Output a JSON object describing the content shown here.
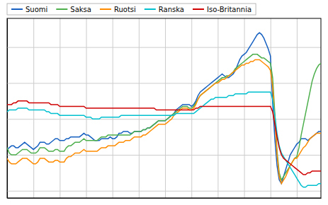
{
  "chart_data": {
    "type": "line",
    "x": [
      0,
      1,
      2,
      3,
      4,
      5,
      6,
      7,
      8,
      9,
      10,
      11,
      12,
      13,
      14,
      15,
      16,
      17,
      18,
      19,
      20,
      21,
      22,
      23,
      24,
      25,
      26,
      27,
      28,
      29,
      30,
      31,
      32,
      33,
      34,
      35,
      36,
      37,
      38,
      39,
      40,
      41,
      42,
      43,
      44,
      45,
      46,
      47,
      48,
      49,
      50,
      51,
      52,
      53,
      54,
      55,
      56,
      57,
      58,
      59,
      60,
      61,
      62,
      63,
      64,
      65,
      66,
      67,
      68,
      69,
      70,
      71,
      72,
      73,
      74,
      75,
      76,
      77,
      78,
      79,
      80,
      81,
      82,
      83,
      84,
      85,
      86,
      87,
      88,
      89,
      90,
      91,
      92,
      93,
      94,
      95,
      96,
      97,
      98,
      99,
      100,
      101,
      102,
      103,
      104,
      105,
      106,
      107,
      108,
      109,
      110,
      111,
      112,
      113,
      114,
      115,
      116,
      117,
      118,
      119,
      120,
      121,
      122,
      123,
      124,
      125,
      126,
      127,
      128,
      129,
      130,
      131,
      132,
      133,
      134,
      135,
      136,
      137,
      138,
      139,
      140,
      141,
      142,
      143
    ],
    "series": [
      {
        "name": "Suomi",
        "color": "#1560c0",
        "values": [
          -8.5,
          -8.0,
          -7.5,
          -7.5,
          -8.0,
          -8.0,
          -7.5,
          -7.0,
          -6.5,
          -7.0,
          -7.5,
          -8.0,
          -8.5,
          -8.0,
          -7.5,
          -6.5,
          -6.5,
          -6.5,
          -7.0,
          -7.0,
          -6.5,
          -6.0,
          -5.5,
          -5.5,
          -6.0,
          -6.0,
          -6.0,
          -5.5,
          -5.5,
          -5.0,
          -5.0,
          -5.0,
          -5.0,
          -5.0,
          -4.5,
          -4.0,
          -4.5,
          -4.5,
          -5.0,
          -5.5,
          -6.0,
          -6.0,
          -6.0,
          -5.5,
          -5.5,
          -5.5,
          -5.5,
          -5.0,
          -5.5,
          -5.5,
          -5.0,
          -4.0,
          -4.0,
          -3.5,
          -3.5,
          -3.5,
          -4.0,
          -4.0,
          -3.5,
          -3.5,
          -3.5,
          -3.5,
          -3.0,
          -3.0,
          -2.5,
          -2.5,
          -2.0,
          -1.5,
          -1.0,
          -0.5,
          -0.5,
          -0.5,
          -0.5,
          0.0,
          0.5,
          1.0,
          1.5,
          2.5,
          3.0,
          3.5,
          4.0,
          4.0,
          4.0,
          4.0,
          3.5,
          4.0,
          5.0,
          6.5,
          7.5,
          8.0,
          8.5,
          9.0,
          9.5,
          10.0,
          10.5,
          11.0,
          11.5,
          12.0,
          12.5,
          12.0,
          11.5,
          11.5,
          12.0,
          12.5,
          13.5,
          15.0,
          16.5,
          17.5,
          18.0,
          18.5,
          19.5,
          20.5,
          21.5,
          22.5,
          23.5,
          24.0,
          23.5,
          22.5,
          21.0,
          19.5,
          17.5,
          4.5,
          -5.5,
          -13.0,
          -17.0,
          -18.0,
          -16.0,
          -14.0,
          -12.0,
          -10.0,
          -9.0,
          -8.0,
          -7.0,
          -6.5,
          -5.5,
          -5.5,
          -5.5,
          -6.0,
          -5.5,
          -5.0,
          -4.5,
          -4.0,
          -3.5,
          -3.5
        ]
      },
      {
        "name": "Saksa",
        "color": "#4caf4c",
        "values": [
          -8.0,
          -9.5,
          -10.0,
          -10.0,
          -10.0,
          -9.5,
          -9.0,
          -8.5,
          -8.5,
          -8.5,
          -9.0,
          -9.5,
          -9.5,
          -9.5,
          -9.0,
          -8.0,
          -8.0,
          -8.0,
          -8.5,
          -9.0,
          -9.0,
          -9.0,
          -8.5,
          -8.5,
          -9.0,
          -9.0,
          -9.0,
          -8.0,
          -7.5,
          -7.5,
          -7.0,
          -6.5,
          -6.5,
          -6.5,
          -6.0,
          -5.5,
          -6.0,
          -6.0,
          -6.0,
          -6.0,
          -6.0,
          -6.0,
          -5.5,
          -5.0,
          -5.0,
          -5.0,
          -4.5,
          -4.5,
          -4.5,
          -4.5,
          -4.5,
          -4.5,
          -4.5,
          -4.5,
          -4.5,
          -4.5,
          -4.5,
          -4.0,
          -3.5,
          -3.5,
          -3.5,
          -3.5,
          -3.0,
          -3.0,
          -2.5,
          -2.5,
          -2.0,
          -1.5,
          -1.0,
          -0.5,
          -0.5,
          -0.5,
          -0.5,
          0.0,
          0.5,
          1.0,
          1.5,
          2.0,
          2.5,
          3.0,
          3.5,
          3.5,
          3.5,
          3.0,
          3.0,
          3.5,
          4.5,
          5.5,
          6.5,
          7.0,
          7.5,
          8.0,
          8.5,
          9.0,
          9.5,
          10.0,
          10.5,
          11.0,
          11.5,
          11.5,
          12.0,
          12.0,
          12.5,
          13.0,
          14.0,
          14.5,
          15.0,
          15.5,
          16.0,
          16.5,
          17.0,
          17.5,
          18.0,
          18.0,
          18.0,
          17.5,
          17.0,
          17.0,
          16.5,
          16.0,
          15.5,
          11.5,
          1.5,
          -9.0,
          -15.0,
          -17.0,
          -16.0,
          -15.0,
          -14.0,
          -13.0,
          -12.0,
          -11.0,
          -10.5,
          -8.0,
          -4.5,
          -1.5,
          1.5,
          4.5,
          7.5,
          10.5,
          12.5,
          14.0,
          15.0,
          15.5
        ]
      },
      {
        "name": "Ruotsi",
        "color": "#ff8c00",
        "values": [
          -11.0,
          -12.0,
          -12.5,
          -12.5,
          -12.5,
          -12.0,
          -11.5,
          -11.0,
          -11.0,
          -11.0,
          -11.5,
          -12.0,
          -12.5,
          -12.5,
          -12.0,
          -11.0,
          -11.0,
          -11.0,
          -11.5,
          -12.0,
          -12.0,
          -12.0,
          -11.5,
          -11.5,
          -12.0,
          -12.0,
          -12.0,
          -11.0,
          -10.5,
          -10.5,
          -10.0,
          -9.5,
          -9.5,
          -9.5,
          -9.0,
          -8.5,
          -9.0,
          -9.0,
          -9.0,
          -9.0,
          -9.0,
          -9.0,
          -8.5,
          -8.0,
          -8.0,
          -8.0,
          -7.5,
          -7.5,
          -7.5,
          -7.5,
          -7.0,
          -6.5,
          -6.5,
          -6.5,
          -6.0,
          -6.0,
          -6.0,
          -5.5,
          -5.0,
          -5.0,
          -5.0,
          -5.0,
          -4.5,
          -4.5,
          -4.0,
          -3.5,
          -3.0,
          -2.5,
          -2.0,
          -1.5,
          -1.5,
          -1.5,
          -1.5,
          -1.0,
          -0.5,
          0.0,
          1.0,
          1.5,
          2.0,
          2.5,
          3.0,
          3.0,
          3.0,
          2.5,
          2.5,
          3.0,
          4.0,
          5.5,
          6.5,
          7.0,
          7.5,
          8.0,
          8.5,
          9.0,
          9.5,
          10.0,
          10.0,
          10.5,
          11.0,
          11.0,
          11.5,
          12.0,
          12.5,
          13.0,
          13.5,
          14.0,
          14.5,
          15.0,
          15.0,
          15.5,
          15.5,
          16.0,
          16.0,
          16.5,
          16.5,
          16.5,
          16.0,
          15.5,
          15.0,
          14.5,
          13.5,
          9.0,
          0.0,
          -10.0,
          -16.0,
          -18.0,
          -17.0,
          -16.0,
          -14.5,
          -13.0,
          -12.0,
          -11.0,
          -11.0,
          -10.0,
          -9.0,
          -8.0,
          -7.5,
          -6.5,
          -5.5,
          -5.0,
          -4.5,
          -4.0,
          -4.0,
          -4.0
        ]
      },
      {
        "name": "Ranska",
        "color": "#00c0d0",
        "values": [
          2.0,
          2.5,
          2.5,
          2.5,
          2.5,
          3.0,
          3.0,
          3.0,
          3.0,
          3.0,
          2.5,
          2.5,
          2.5,
          2.5,
          2.5,
          2.5,
          2.5,
          2.5,
          2.0,
          2.0,
          1.5,
          1.5,
          1.5,
          1.5,
          1.0,
          1.0,
          1.0,
          1.0,
          1.0,
          1.0,
          1.0,
          1.0,
          1.0,
          1.0,
          1.0,
          1.0,
          0.5,
          0.5,
          0.5,
          0.0,
          0.0,
          0.0,
          0.0,
          0.5,
          0.5,
          0.5,
          0.5,
          0.5,
          0.5,
          0.5,
          0.5,
          0.5,
          1.0,
          1.0,
          1.0,
          1.0,
          1.0,
          1.0,
          1.0,
          1.0,
          1.0,
          1.0,
          1.0,
          1.0,
          1.0,
          1.0,
          1.0,
          1.0,
          1.0,
          1.0,
          1.0,
          1.0,
          1.0,
          1.0,
          1.0,
          1.0,
          1.0,
          1.5,
          1.5,
          1.5,
          1.5,
          1.5,
          1.5,
          1.5,
          1.5,
          1.5,
          2.0,
          2.5,
          3.0,
          3.5,
          4.0,
          4.5,
          5.0,
          5.5,
          5.5,
          6.0,
          6.0,
          6.0,
          6.0,
          6.0,
          6.0,
          6.5,
          6.5,
          6.5,
          7.0,
          7.0,
          7.0,
          7.0,
          7.0,
          7.0,
          7.5,
          7.5,
          7.5,
          7.5,
          7.5,
          7.5,
          7.5,
          7.5,
          7.5,
          7.5,
          7.5,
          5.5,
          1.0,
          -4.0,
          -7.5,
          -9.5,
          -10.5,
          -11.5,
          -12.5,
          -13.5,
          -14.5,
          -15.5,
          -16.5,
          -17.5,
          -18.5,
          -19.0,
          -19.0,
          -18.5,
          -18.5,
          -18.5,
          -18.5,
          -18.5,
          -18.0,
          -18.0
        ]
      },
      {
        "name": "Iso-Britannia",
        "color": "#d00000",
        "values": [
          4.0,
          4.0,
          4.0,
          4.5,
          4.5,
          5.0,
          5.0,
          5.0,
          5.0,
          5.0,
          4.5,
          4.5,
          4.5,
          4.5,
          4.5,
          4.5,
          4.5,
          4.5,
          4.5,
          4.5,
          4.0,
          4.0,
          4.0,
          4.0,
          3.5,
          3.5,
          3.5,
          3.5,
          3.5,
          3.5,
          3.5,
          3.5,
          3.5,
          3.5,
          3.5,
          3.5,
          3.0,
          3.0,
          3.0,
          3.0,
          3.0,
          3.0,
          3.0,
          3.0,
          3.0,
          3.0,
          3.0,
          3.0,
          3.0,
          3.0,
          3.0,
          3.0,
          3.0,
          3.0,
          3.0,
          3.0,
          3.0,
          3.0,
          3.0,
          3.0,
          3.0,
          3.0,
          3.0,
          3.0,
          3.0,
          3.0,
          3.0,
          3.0,
          2.5,
          2.5,
          2.5,
          2.5,
          2.5,
          2.5,
          2.5,
          2.5,
          2.5,
          2.5,
          2.5,
          2.5,
          2.5,
          2.5,
          2.5,
          2.5,
          2.5,
          2.5,
          3.0,
          3.0,
          3.5,
          3.5,
          3.5,
          3.5,
          3.5,
          3.5,
          3.5,
          3.5,
          3.5,
          3.5,
          3.5,
          3.5,
          3.5,
          3.5,
          3.5,
          3.5,
          3.5,
          3.5,
          3.5,
          3.5,
          3.5,
          3.5,
          3.5,
          3.5,
          3.5,
          3.5,
          3.5,
          3.5,
          3.5,
          3.5,
          3.5,
          3.5,
          3.5,
          2.0,
          -1.5,
          -5.0,
          -8.0,
          -10.0,
          -11.0,
          -11.5,
          -12.0,
          -12.5,
          -13.0,
          -13.5,
          -14.0,
          -14.5,
          -15.0,
          -15.5,
          -15.5,
          -15.0,
          -15.0,
          -14.5,
          -14.5,
          -14.5,
          -14.5,
          -14.5
        ]
      }
    ],
    "xlim": [
      0,
      143
    ],
    "ylim": [
      -22,
      28
    ],
    "xticks": [
      0,
      12,
      24,
      36,
      48,
      60,
      72,
      84,
      96,
      108,
      120,
      132
    ],
    "yticks": [
      -20,
      -10,
      0,
      10,
      20
    ],
    "grid": true,
    "legend": "upper left",
    "tick_labels": false
  }
}
